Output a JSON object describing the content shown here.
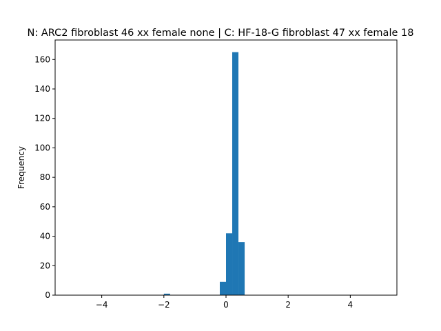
{
  "chart_data": {
    "type": "bar",
    "subtype": "histogram",
    "title": "N: ARC2 fibroblast 46 xx female none | C: HF-18-G fibroblast 47 xx female 18",
    "xlabel": "",
    "ylabel": "Frequency",
    "xlim": [
      -5.5,
      5.5
    ],
    "ylim": [
      0,
      173.25
    ],
    "x_ticks": [
      -4,
      -2,
      0,
      2,
      4
    ],
    "y_ticks": [
      0,
      20,
      40,
      60,
      80,
      100,
      120,
      140,
      160
    ],
    "bins": [
      {
        "x0": -2.0,
        "x1": -1.8,
        "count": 1
      },
      {
        "x0": -0.2,
        "x1": 0.0,
        "count": 9
      },
      {
        "x0": 0.0,
        "x1": 0.2,
        "count": 42
      },
      {
        "x0": 0.2,
        "x1": 0.4,
        "count": 165
      },
      {
        "x0": 0.4,
        "x1": 0.6,
        "count": 36
      }
    ],
    "bar_color": "#1f77b4",
    "grid": false,
    "legend": "none"
  }
}
